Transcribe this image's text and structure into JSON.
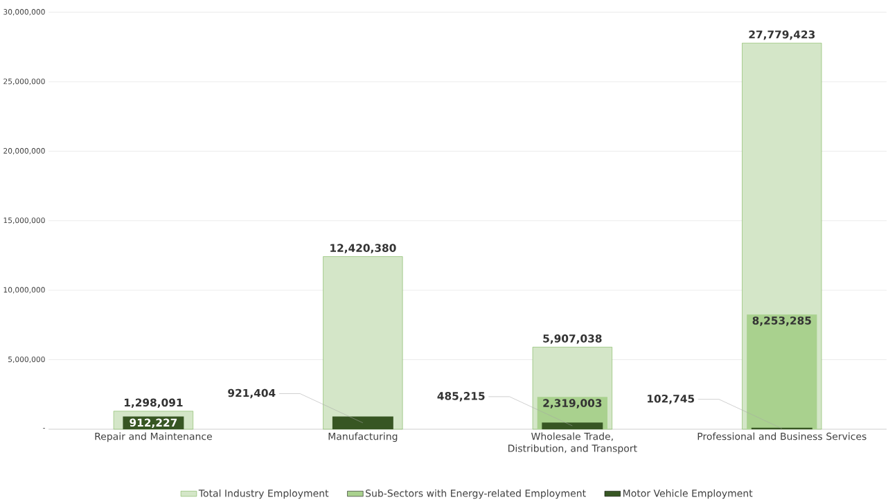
{
  "chart_data": {
    "type": "bar",
    "categories": [
      "Repair and Maintenance",
      "Manufacturing",
      "Wholesale Trade, Distribution, and Transport",
      "Professional and Business Services"
    ],
    "series": [
      {
        "name": "Total Industry Employment",
        "color": "#70ad47",
        "values": [
          1298091,
          12420380,
          5907038,
          27779423
        ],
        "value_labels": [
          "1,298,091",
          "12,420,380",
          "5,907,038",
          "27,779,423"
        ]
      },
      {
        "name": "Sub-Sectors with Energy-related Employment",
        "color": "#a9d18e",
        "values": [
          null,
          null,
          2319003,
          8253285
        ],
        "value_labels": [
          null,
          null,
          "2,319,003",
          "8,253,285"
        ]
      },
      {
        "name": "Motor Vehicle Employment",
        "color": "#375623",
        "values": [
          912227,
          921404,
          485215,
          102745
        ],
        "value_labels": [
          "912,227",
          "921,404",
          "485,215",
          "102,745"
        ]
      }
    ],
    "ylim": [
      0,
      30000000
    ],
    "yticks": [
      {
        "value": 0,
        "label": "-"
      },
      {
        "value": 5000000,
        "label": "5,000,000"
      },
      {
        "value": 10000000,
        "label": "10,000,000"
      },
      {
        "value": 15000000,
        "label": "15,000,000"
      },
      {
        "value": 20000000,
        "label": "20,000,000"
      },
      {
        "value": 25000000,
        "label": "25,000,000"
      },
      {
        "value": 30000000,
        "label": "30,000,000"
      }
    ],
    "grid": "y",
    "legend": "bottom"
  }
}
